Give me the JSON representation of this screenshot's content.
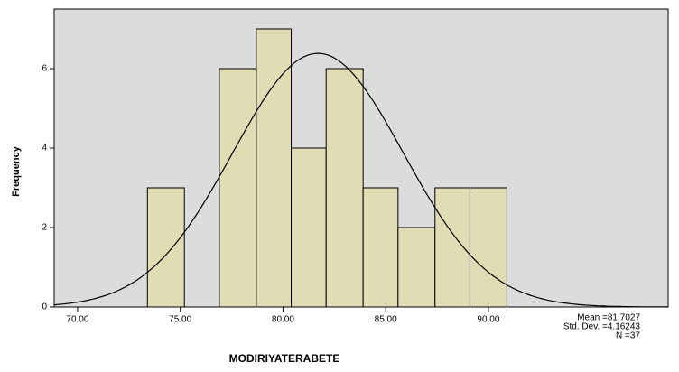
{
  "chart_data": {
    "type": "histogram",
    "x_label": "MODIRIYATERABETE",
    "y_label": "Frequency",
    "bins": [
      73.4,
      75.2,
      76.9,
      78.7,
      80.4,
      82.1,
      83.9,
      85.6,
      87.4,
      89.1,
      90.9
    ],
    "values": [
      3,
      0,
      6,
      7,
      4,
      6,
      3,
      2,
      3,
      3
    ],
    "color": "#e0dcb4",
    "xlim": [
      68.86,
      98.75
    ],
    "xticks": [
      {
        "value": 70,
        "label": "70.00"
      },
      {
        "value": 75,
        "label": "75.00"
      },
      {
        "value": 80,
        "label": "80.00"
      },
      {
        "value": 85,
        "label": "85.00"
      },
      {
        "value": 90,
        "label": "90.00"
      }
    ],
    "ylim": [
      0,
      7.5
    ],
    "yticks": [
      0,
      2,
      4,
      6
    ],
    "stats": {
      "values": [
        81.7027,
        4.16243,
        37
      ],
      "value_labels": [
        "Mean =81.7027",
        "Std. Dev. =4.16243",
        "N =37"
      ]
    },
    "plot_background": "#dcdcdc"
  }
}
